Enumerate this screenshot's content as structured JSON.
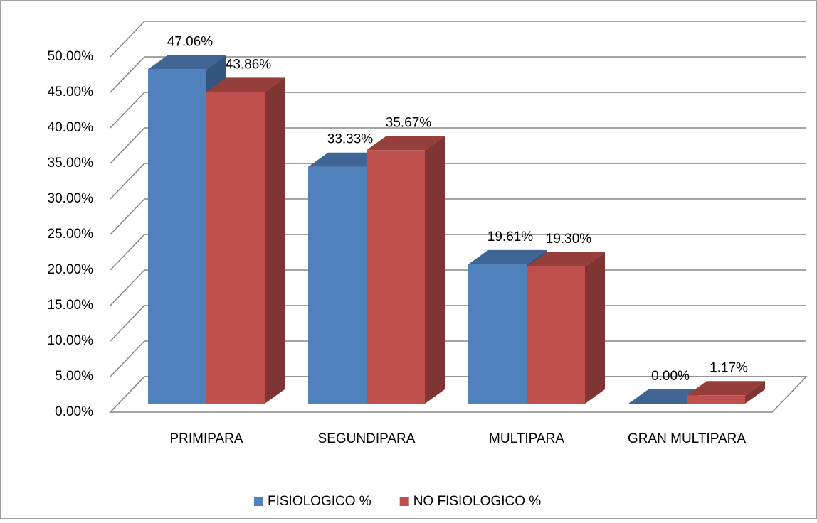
{
  "chart_data": {
    "type": "bar3d",
    "categories": [
      "PRIMIPARA",
      "SEGUNDIPARA",
      "MULTIPARA",
      "GRAN MULTIPARA"
    ],
    "series": [
      {
        "name": "FISIOLOGICO %",
        "color": "#4f81bd",
        "values": [
          47.06,
          33.33,
          19.61,
          0.0
        ],
        "value_labels": [
          "47.06%",
          "33.33%",
          "19.61%",
          "0.00%"
        ]
      },
      {
        "name": "NO FISIOLOGICO %",
        "color": "#c0504d",
        "values": [
          43.86,
          35.67,
          19.3,
          1.17
        ],
        "value_labels": [
          "43.86%",
          "35.67%",
          "19.30%",
          "1.17%"
        ]
      }
    ],
    "ylim": [
      0,
      50
    ],
    "yticks": [
      {
        "value": 0,
        "label": "0.00%"
      },
      {
        "value": 5,
        "label": "5.00%"
      },
      {
        "value": 10,
        "label": "10.00%"
      },
      {
        "value": 15,
        "label": "15.00%"
      },
      {
        "value": 20,
        "label": "20.00%"
      },
      {
        "value": 25,
        "label": "25.00%"
      },
      {
        "value": 30,
        "label": "30.00%"
      },
      {
        "value": 35,
        "label": "35.00%"
      },
      {
        "value": 40,
        "label": "40.00%"
      },
      {
        "value": 45,
        "label": "45.00%"
      },
      {
        "value": 50,
        "label": "50.00%"
      }
    ],
    "grid": true,
    "legend": "bottom"
  }
}
